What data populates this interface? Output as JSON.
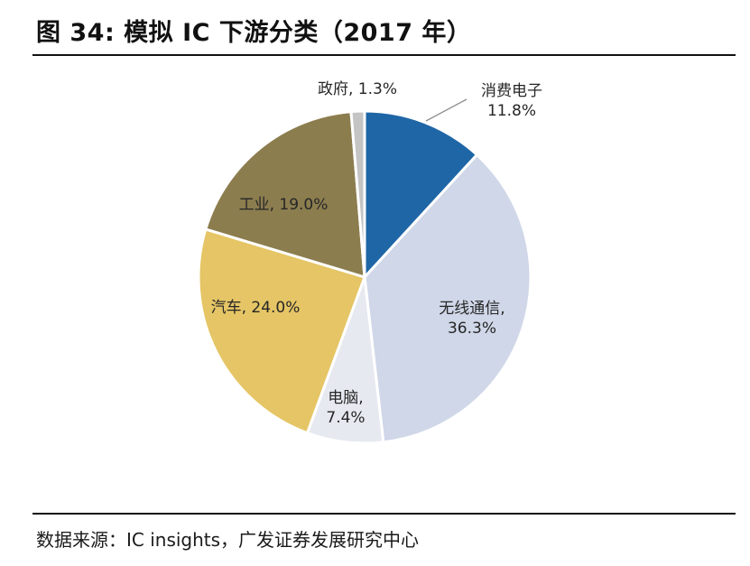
{
  "figure": {
    "title": "图 34:  模拟 IC 下游分类（2017 年）",
    "source": "数据来源：IC insights，广发证券发展研究中心"
  },
  "chart_data": {
    "type": "pie",
    "title": "",
    "slices": [
      {
        "name": "消费电子",
        "value": 11.8,
        "color": "#1f66a6"
      },
      {
        "name": "无线通信",
        "value": 36.3,
        "color": "#cfd7e8"
      },
      {
        "name": "电脑",
        "value": 7.4,
        "color": "#e6e9f0"
      },
      {
        "name": "汽车",
        "value": 24.0,
        "color": "#e5c565"
      },
      {
        "name": "工业",
        "value": 19.0,
        "color": "#8c7d4f"
      },
      {
        "name": "政府",
        "value": 1.3,
        "color": "#c4c4c4"
      }
    ],
    "labels": [
      {
        "lines": [
          "消费电子",
          "11.8%"
        ]
      },
      {
        "lines": [
          "无线通信,",
          "36.3%"
        ]
      },
      {
        "lines": [
          "电脑,",
          "7.4%"
        ]
      },
      {
        "lines": [
          "汽车, 24.0%"
        ]
      },
      {
        "lines": [
          "工业, 19.0%"
        ]
      },
      {
        "lines": [
          "政府, 1.3%"
        ]
      }
    ],
    "start_angle_deg": 0,
    "direction": "clockwise",
    "legend": "none"
  }
}
